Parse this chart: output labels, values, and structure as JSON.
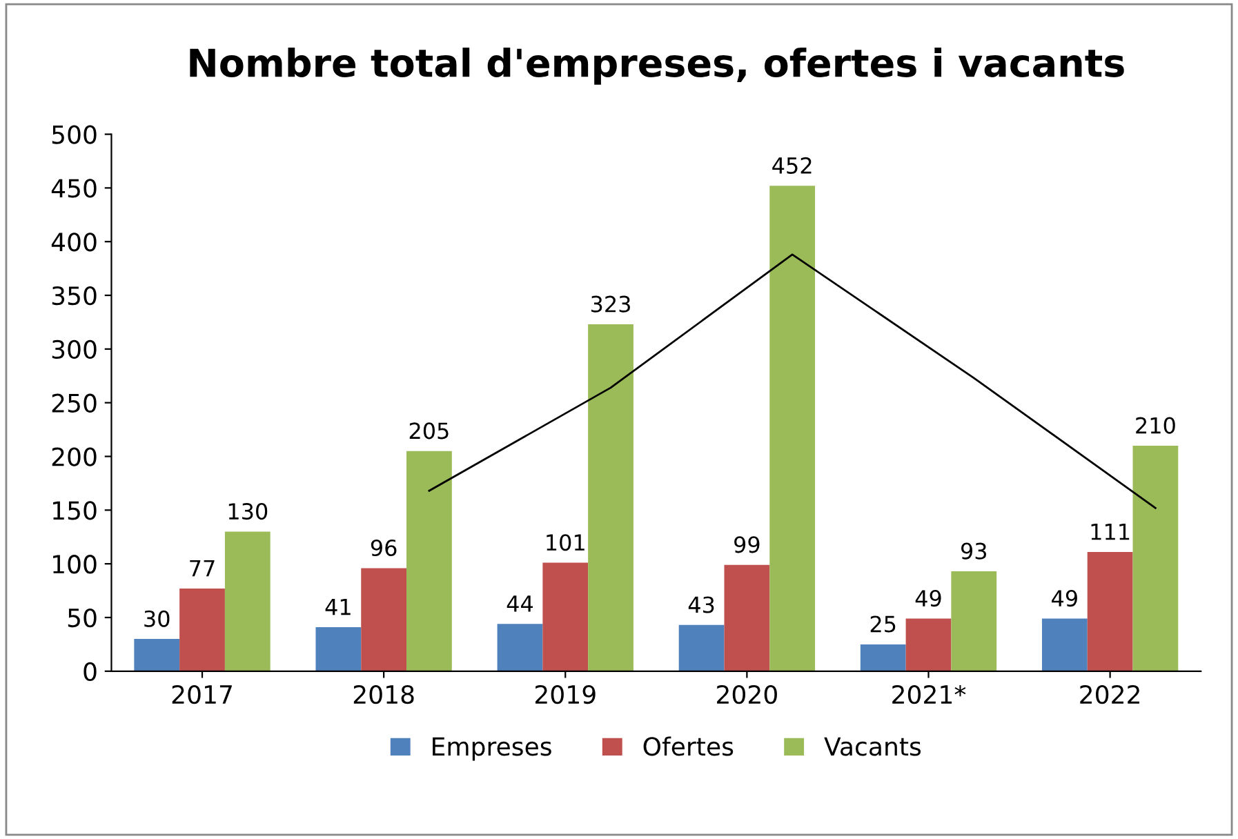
{
  "chart_data": {
    "type": "bar",
    "title": "Nombre total d'empreses, ofertes i vacants",
    "categories": [
      "2017",
      "2018",
      "2019",
      "2020",
      "2021*",
      "2022"
    ],
    "series": [
      {
        "name": "Empreses",
        "color": "#4f81bd",
        "values": [
          30,
          41,
          44,
          43,
          25,
          49
        ],
        "value_labels": [
          "30",
          "41",
          "44",
          "43",
          "25",
          "49"
        ]
      },
      {
        "name": "Ofertes",
        "color": "#c0504d",
        "values": [
          77,
          96,
          101,
          99,
          49,
          111
        ],
        "value_labels": [
          "77",
          "96",
          "101",
          "99",
          "49",
          "111"
        ]
      },
      {
        "name": "Vacants",
        "color": "#9bbb59",
        "values": [
          130,
          205,
          323,
          452,
          93,
          210
        ],
        "value_labels": [
          "130",
          "205",
          "323",
          "452",
          "93",
          "210"
        ]
      },
      {
        "type": "line",
        "color": "#000000",
        "values": [
          null,
          168,
          264,
          388,
          273,
          152
        ]
      }
    ],
    "ylim": [
      0,
      500
    ],
    "yticks": [
      0,
      50,
      100,
      150,
      200,
      250,
      300,
      350,
      400,
      450,
      500
    ],
    "grid": false,
    "legend": "bottom"
  }
}
